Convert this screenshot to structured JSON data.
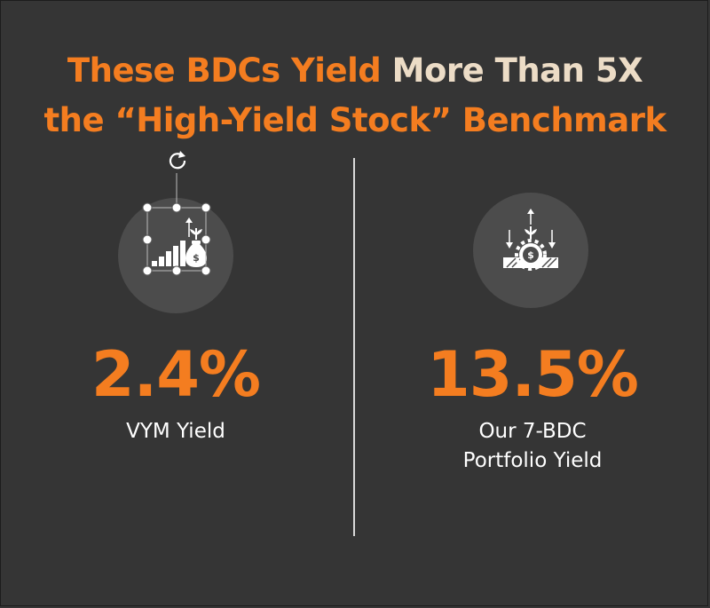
{
  "title": {
    "part1": "These BDCs Yield ",
    "part2": "More Than 5X",
    "line2": "the “High-Yield Stock” Benchmark"
  },
  "left": {
    "value": "2.4%",
    "label_line1": "VYM Yield",
    "icon": "money-bag-growth-icon"
  },
  "right": {
    "value": "13.5%",
    "label_line1": "Our 7-BDC",
    "label_line2": "Portfolio Yield",
    "icon": "dollar-gear-arrows-icon"
  },
  "colors": {
    "background": "#353535",
    "accent": "#f47d20",
    "cream": "#ecdcc6",
    "circle": "#4c4c4c"
  }
}
